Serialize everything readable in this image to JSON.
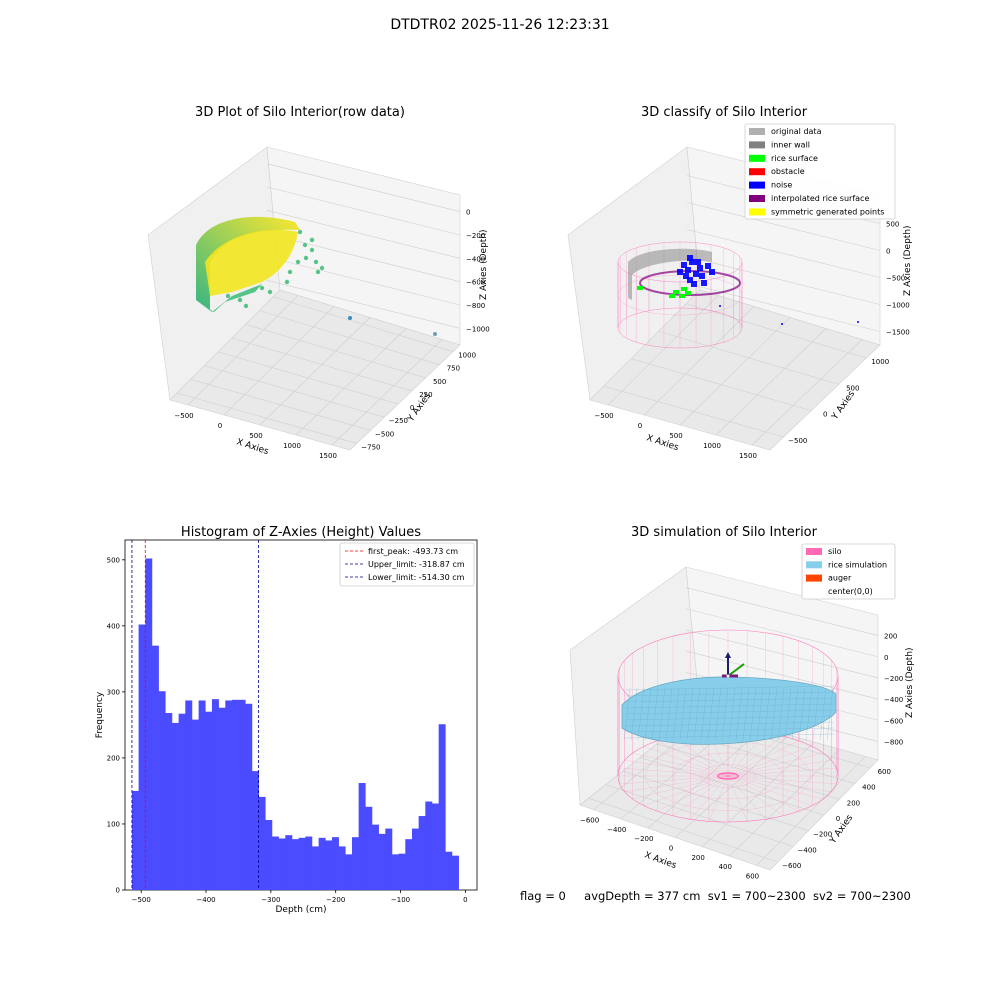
{
  "figure": {
    "suptitle": "DTDTR02 2025-11-26 12:23:31",
    "footer": {
      "flag": "flag = 0",
      "avg_depth": "avgDepth = 377 cm",
      "sv1": "sv1 = 700~2300",
      "sv2": "sv2 = 700~2300"
    }
  },
  "chart_data": [
    {
      "type": "scatter",
      "projection": "3d",
      "title": "3D Plot of Silo Interior(row data)",
      "xlabel": "X Axies",
      "ylabel": "Y Axies",
      "zlabel": "Z Axies (Depth)",
      "x_ticks": [
        "−500",
        "0",
        "500",
        "1000",
        "1500"
      ],
      "y_ticks": [
        "−750",
        "−500",
        "−250",
        "0",
        "250",
        "500",
        "750",
        "1000"
      ],
      "z_ticks": [
        "0",
        "−200",
        "−400",
        "−600",
        "−800",
        "−1000"
      ],
      "colormap": [
        "#2db37c",
        "#fde725"
      ]
    },
    {
      "type": "scatter",
      "projection": "3d",
      "title": "3D classify of Silo Interior",
      "xlabel": "X Axies",
      "ylabel": "Y Axies",
      "zlabel": "Z Axies (Depth)",
      "x_ticks": [
        "−500",
        "0",
        "500",
        "1000",
        "1500"
      ],
      "y_ticks": [
        "−500",
        "0",
        "500",
        "1000"
      ],
      "z_ticks": [
        "500",
        "0",
        "−500",
        "−1000",
        "−1500"
      ],
      "legend": {
        "placement": "top-right",
        "entries": [
          {
            "label": "original data",
            "color": "#b0b0b0"
          },
          {
            "label": "inner wall",
            "color": "#808080"
          },
          {
            "label": "rice surface",
            "color": "#00ff00"
          },
          {
            "label": "obstacle",
            "color": "#ff0000"
          },
          {
            "label": "noise",
            "color": "#0000ff"
          },
          {
            "label": "interpolated rice surface",
            "color": "#800080"
          },
          {
            "label": "symmetric generated points",
            "color": "#ffff00"
          }
        ]
      }
    },
    {
      "type": "bar",
      "subtype": "histogram",
      "title": "Histogram of Z-Axies (Height) Values",
      "xlabel": "Depth (cm)",
      "ylabel": "Frequency",
      "xlim": [
        -525,
        18
      ],
      "ylim": [
        0,
        530
      ],
      "x_ticks": [
        -500,
        -400,
        -300,
        -200,
        -100,
        0
      ],
      "x_tick_labels": [
        "−500",
        "−400",
        "−300",
        "−200",
        "−100",
        "0"
      ],
      "y_ticks": [
        0,
        100,
        200,
        300,
        400,
        500
      ],
      "bin_start": -514.3,
      "bin_width": 10.286,
      "values": [
        150,
        402,
        502,
        370,
        301,
        268,
        253,
        267,
        287,
        258,
        287,
        270,
        289,
        276,
        287,
        288,
        288,
        282,
        180,
        141,
        106,
        81,
        78,
        83,
        77,
        79,
        81,
        66,
        79,
        75,
        80,
        66,
        54,
        80,
        162,
        126,
        99,
        85,
        93,
        54,
        55,
        77,
        93,
        112,
        134,
        131,
        251,
        58,
        52
      ],
      "bar_color": "#4b4bff",
      "vlines": [
        {
          "label": "first_peak: -493.73 cm",
          "x": -493.73,
          "color": "#ff0000"
        },
        {
          "label": "Upper_limit: -318.87 cm",
          "x": -318.87,
          "color": "#00008b"
        },
        {
          "label": "Lower_limit: -514.30 cm",
          "x": -514.3,
          "color": "#00008b"
        }
      ],
      "legend_placement": "top-right"
    },
    {
      "type": "area",
      "projection": "3d",
      "title": "3D simulation of Silo Interior",
      "xlabel": "X Axies",
      "ylabel": "Y Axies",
      "zlabel": "Z Axies (Depth)",
      "x_ticks": [
        "−600",
        "−400",
        "−200",
        "0",
        "200",
        "400",
        "600"
      ],
      "y_ticks": [
        "−600",
        "−400",
        "−200",
        "0",
        "200",
        "400",
        "600"
      ],
      "z_ticks": [
        "200",
        "0",
        "−200",
        "−400",
        "−600",
        "−800"
      ],
      "legend": {
        "placement": "top-right",
        "entries": [
          {
            "label": "silo",
            "color": "#ff69b4"
          },
          {
            "label": "rice simulation",
            "color": "#87ceeb"
          },
          {
            "label": "auger",
            "color": "#ff4500"
          },
          {
            "label": "center(0,0)",
            "color": "#ffffff"
          }
        ]
      }
    }
  ]
}
